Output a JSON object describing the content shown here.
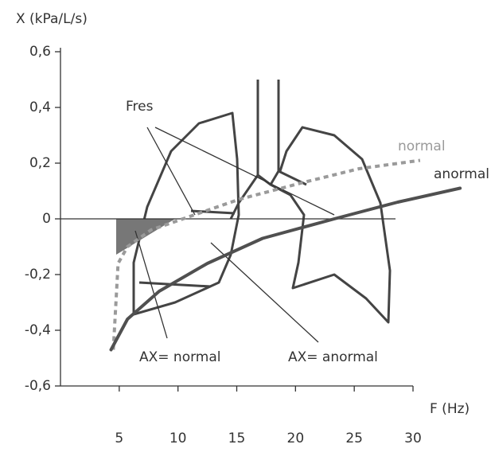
{
  "chart_data": {
    "type": "line",
    "y_label": "X (kPa/L/s)",
    "x_label": "F (Hz)",
    "xlim": [
      0,
      30
    ],
    "xticks": [
      5,
      10,
      15,
      20,
      25,
      30
    ],
    "ylim": [
      -0.6,
      0.6
    ],
    "yticks": [
      {
        "value": 0.6,
        "label": "0,6"
      },
      {
        "value": 0.4,
        "label": "0,4"
      },
      {
        "value": 0.2,
        "label": "0,2"
      },
      0,
      {
        "value": -0.2,
        "label": "-0,2"
      },
      {
        "value": -0.4,
        "label": "-0,4"
      },
      {
        "value": -0.6,
        "label": "-0,6"
      }
    ],
    "series": [
      {
        "name": "normal",
        "color": "#9a9a9a",
        "dashed": true,
        "x": [
          4.5,
          4.9,
          5.7,
          7.7,
          11.1,
          15.2,
          20.6,
          25.4,
          30.6
        ],
        "values": [
          -0.47,
          -0.16,
          -0.1,
          -0.04,
          0.01,
          0.07,
          0.13,
          0.18,
          0.21
        ]
      },
      {
        "name": "anormal",
        "color": "#505050",
        "dashed": false,
        "x": [
          4.3,
          5.7,
          8.4,
          12.5,
          17.2,
          23.3,
          28.7,
          34.0
        ],
        "values": [
          -0.47,
          -0.36,
          -0.26,
          -0.16,
          -0.07,
          0.0,
          0.06,
          0.11
        ]
      }
    ],
    "annotations": [
      "Fres",
      "AX= normal",
      "AX= anormal"
    ]
  }
}
